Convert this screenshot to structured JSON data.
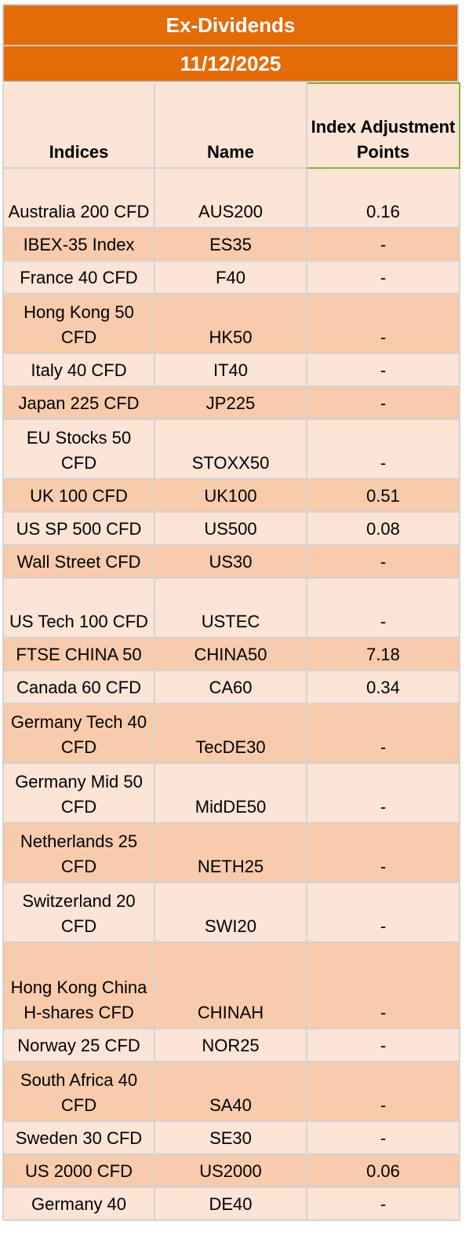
{
  "title": "Ex-Dividends",
  "date": "11/12/2025",
  "columns": {
    "indices": "Indices",
    "name": "Name",
    "adjustment": "Index Adjustment Points"
  },
  "rows": [
    {
      "index": "Australia 200 CFD",
      "name": "AUS200",
      "points": "0.16"
    },
    {
      "index": "IBEX-35 Index",
      "name": "ES35",
      "points": "-"
    },
    {
      "index": "France 40 CFD",
      "name": "F40",
      "points": "-"
    },
    {
      "index": "Hong Kong 50 CFD",
      "name": "HK50",
      "points": "-"
    },
    {
      "index": "Italy 40 CFD",
      "name": "IT40",
      "points": "-"
    },
    {
      "index": "Japan 225 CFD",
      "name": "JP225",
      "points": "-"
    },
    {
      "index": "EU Stocks 50 CFD",
      "name": "STOXX50",
      "points": "-"
    },
    {
      "index": "UK 100 CFD",
      "name": "UK100",
      "points": "0.51"
    },
    {
      "index": "US SP 500 CFD",
      "name": "US500",
      "points": "0.08"
    },
    {
      "index": "Wall Street CFD",
      "name": "US30",
      "points": "-"
    },
    {
      "index": "US Tech 100 CFD",
      "name": "USTEC",
      "points": "-"
    },
    {
      "index": "FTSE CHINA 50",
      "name": "CHINA50",
      "points": "7.18"
    },
    {
      "index": "Canada 60 CFD",
      "name": "CA60",
      "points": "0.34"
    },
    {
      "index": "Germany Tech 40 CFD",
      "name": "TecDE30",
      "points": "-"
    },
    {
      "index": "Germany Mid 50 CFD",
      "name": "MidDE50",
      "points": "-"
    },
    {
      "index": "Netherlands 25 CFD",
      "name": "NETH25",
      "points": "-"
    },
    {
      "index": "Switzerland 20 CFD",
      "name": "SWI20",
      "points": "-"
    },
    {
      "index": "Hong Kong China H-shares CFD",
      "name": "CHINAH",
      "points": "-"
    },
    {
      "index": "Norway 25 CFD",
      "name": "NOR25",
      "points": "-"
    },
    {
      "index": "South Africa 40 CFD",
      "name": "SA40",
      "points": "-"
    },
    {
      "index": "Sweden 30 CFD",
      "name": "SE30",
      "points": "-"
    },
    {
      "index": "US 2000 CFD",
      "name": "US2000",
      "points": "0.06"
    },
    {
      "index": "Germany 40",
      "name": "DE40",
      "points": "-"
    }
  ],
  "colors": {
    "header_band": "#E36C09",
    "row_light": "#FCE4D6",
    "row_dark": "#F8CBAD",
    "highlight_border": "#8DB03C"
  }
}
